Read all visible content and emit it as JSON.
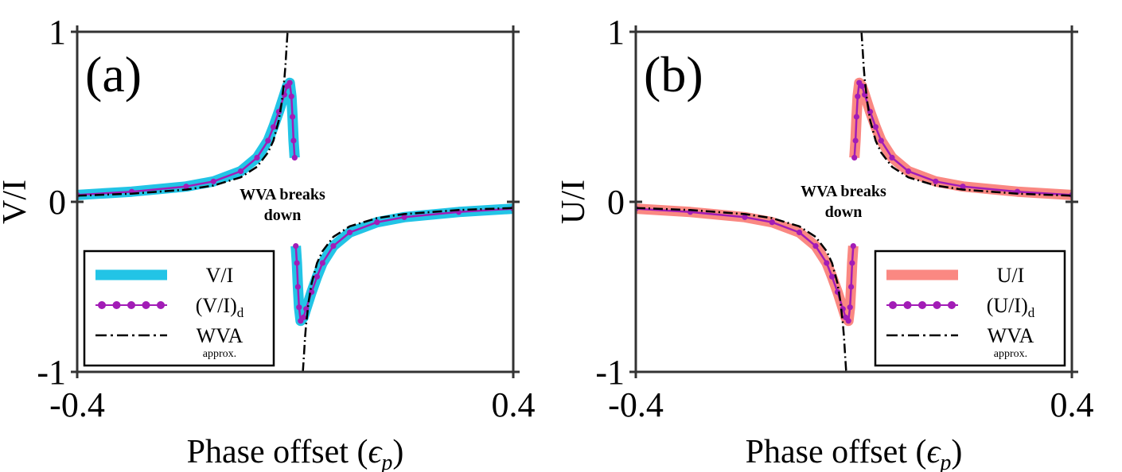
{
  "chart_data": [
    {
      "type": "line",
      "panel_label": "(a)",
      "xlabel": "Phase offset (",
      "xlabel_symbol": "ϵ",
      "xlabel_sub": "p",
      "xlabel_close": ")",
      "ylabel": "V/I",
      "xlim": [
        -0.4,
        0.4
      ],
      "ylim": [
        -1,
        1
      ],
      "xticks": [
        -0.4,
        0.4
      ],
      "xtick_labels": [
        "-0.4",
        "0.4"
      ],
      "yticks": [
        -1,
        0,
        1
      ],
      "ytick_labels": [
        "-1",
        "0",
        "1"
      ],
      "annotation": [
        "WVA breaks",
        "down"
      ],
      "legend_position": "bottom-left",
      "colors": {
        "exact": "#22c4e6",
        "dotted": "#a21cb6",
        "wva": "#000000"
      },
      "series": [
        {
          "name": "V/I",
          "role": "exact",
          "x": [
            -0.4,
            -0.3,
            -0.2,
            -0.15,
            -0.1,
            -0.07,
            -0.05,
            -0.04,
            -0.03,
            -0.02,
            -0.015,
            -0.01,
            -0.007,
            -0.005,
            -0.003,
            -0.001
          ],
          "y": [
            0.04,
            0.06,
            0.09,
            0.12,
            0.18,
            0.26,
            0.36,
            0.44,
            0.53,
            0.63,
            0.68,
            0.7,
            0.62,
            0.5,
            0.36,
            0.26
          ]
        },
        {
          "name": "V/I",
          "role": "exact",
          "x": [
            0.001,
            0.003,
            0.005,
            0.007,
            0.01,
            0.015,
            0.02,
            0.03,
            0.04,
            0.05,
            0.07,
            0.1,
            0.15,
            0.2,
            0.3,
            0.4
          ],
          "y": [
            -0.26,
            -0.36,
            -0.5,
            -0.62,
            -0.7,
            -0.68,
            -0.63,
            -0.53,
            -0.44,
            -0.36,
            -0.26,
            -0.18,
            -0.12,
            -0.09,
            -0.06,
            -0.04
          ]
        },
        {
          "name": "(V/I)",
          "name_sub": "d",
          "role": "dotted",
          "x": [
            -0.4,
            -0.3,
            -0.2,
            -0.15,
            -0.1,
            -0.07,
            -0.05,
            -0.04,
            -0.03,
            -0.02,
            -0.015,
            -0.01,
            -0.007,
            -0.005,
            -0.003,
            -0.001
          ],
          "y": [
            0.04,
            0.06,
            0.09,
            0.12,
            0.18,
            0.26,
            0.36,
            0.44,
            0.53,
            0.63,
            0.68,
            0.7,
            0.62,
            0.5,
            0.36,
            0.26
          ]
        },
        {
          "name": "(V/I)",
          "name_sub": "d",
          "role": "dotted",
          "x": [
            0.001,
            0.003,
            0.005,
            0.007,
            0.01,
            0.015,
            0.02,
            0.03,
            0.04,
            0.05,
            0.07,
            0.1,
            0.15,
            0.2,
            0.3,
            0.4
          ],
          "y": [
            -0.26,
            -0.36,
            -0.5,
            -0.62,
            -0.7,
            -0.68,
            -0.63,
            -0.53,
            -0.44,
            -0.36,
            -0.26,
            -0.18,
            -0.12,
            -0.09,
            -0.06,
            -0.04
          ]
        },
        {
          "name": "WVA",
          "name_note": "approx.",
          "role": "wva",
          "x": [
            -0.4,
            -0.3,
            -0.2,
            -0.15,
            -0.1,
            -0.07,
            -0.05,
            -0.04,
            -0.03,
            -0.025,
            -0.02,
            -0.018,
            -0.016,
            -0.014
          ],
          "y": [
            0.036,
            0.048,
            0.072,
            0.096,
            0.144,
            0.206,
            0.29,
            0.36,
            0.48,
            0.58,
            0.72,
            0.8,
            0.9,
            1.0
          ]
        },
        {
          "name": "WVA",
          "name_note": "approx.",
          "role": "wva",
          "x": [
            0.014,
            0.016,
            0.018,
            0.02,
            0.025,
            0.03,
            0.04,
            0.05,
            0.07,
            0.1,
            0.15,
            0.2,
            0.3,
            0.4
          ],
          "y": [
            -1.0,
            -0.9,
            -0.8,
            -0.72,
            -0.58,
            -0.48,
            -0.36,
            -0.29,
            -0.206,
            -0.144,
            -0.096,
            -0.072,
            -0.048,
            -0.036
          ]
        }
      ]
    },
    {
      "type": "line",
      "panel_label": "(b)",
      "xlabel": "Phase offset (",
      "xlabel_symbol": "ϵ",
      "xlabel_sub": "p",
      "xlabel_close": ")",
      "ylabel": "U/I",
      "xlim": [
        -0.4,
        0.4
      ],
      "ylim": [
        -1,
        1
      ],
      "xticks": [
        -0.4,
        0.4
      ],
      "xtick_labels": [
        "-0.4",
        "0.4"
      ],
      "yticks": [
        -1,
        0,
        1
      ],
      "ytick_labels": [
        "-1",
        "0",
        "1"
      ],
      "annotation": [
        "WVA breaks",
        "down"
      ],
      "legend_position": "bottom-right",
      "colors": {
        "exact": "#fa8882",
        "dotted": "#a21cb6",
        "wva": "#000000"
      },
      "series": [
        {
          "name": "U/I",
          "role": "exact",
          "x": [
            -0.4,
            -0.3,
            -0.2,
            -0.15,
            -0.1,
            -0.07,
            -0.05,
            -0.04,
            -0.03,
            -0.02,
            -0.015,
            -0.01,
            -0.007,
            -0.005,
            -0.003,
            -0.001
          ],
          "y": [
            -0.04,
            -0.06,
            -0.09,
            -0.12,
            -0.18,
            -0.26,
            -0.36,
            -0.44,
            -0.53,
            -0.63,
            -0.68,
            -0.7,
            -0.62,
            -0.5,
            -0.36,
            -0.26
          ]
        },
        {
          "name": "U/I",
          "role": "exact",
          "x": [
            0.001,
            0.003,
            0.005,
            0.007,
            0.01,
            0.015,
            0.02,
            0.03,
            0.04,
            0.05,
            0.07,
            0.1,
            0.15,
            0.2,
            0.3,
            0.4
          ],
          "y": [
            0.26,
            0.36,
            0.5,
            0.62,
            0.7,
            0.68,
            0.63,
            0.53,
            0.44,
            0.36,
            0.26,
            0.18,
            0.12,
            0.09,
            0.06,
            0.04
          ]
        },
        {
          "name": "(U/I)",
          "name_sub": "d",
          "role": "dotted",
          "x": [
            -0.4,
            -0.3,
            -0.2,
            -0.15,
            -0.1,
            -0.07,
            -0.05,
            -0.04,
            -0.03,
            -0.02,
            -0.015,
            -0.01,
            -0.007,
            -0.005,
            -0.003,
            -0.001
          ],
          "y": [
            -0.04,
            -0.06,
            -0.09,
            -0.12,
            -0.18,
            -0.26,
            -0.36,
            -0.44,
            -0.53,
            -0.63,
            -0.68,
            -0.7,
            -0.62,
            -0.5,
            -0.36,
            -0.26
          ]
        },
        {
          "name": "(U/I)",
          "name_sub": "d",
          "role": "dotted",
          "x": [
            0.001,
            0.003,
            0.005,
            0.007,
            0.01,
            0.015,
            0.02,
            0.03,
            0.04,
            0.05,
            0.07,
            0.1,
            0.15,
            0.2,
            0.3,
            0.4
          ],
          "y": [
            0.26,
            0.36,
            0.5,
            0.62,
            0.7,
            0.68,
            0.63,
            0.53,
            0.44,
            0.36,
            0.26,
            0.18,
            0.12,
            0.09,
            0.06,
            0.04
          ]
        },
        {
          "name": "WVA",
          "name_note": "approx.",
          "role": "wva",
          "x": [
            -0.4,
            -0.3,
            -0.2,
            -0.15,
            -0.1,
            -0.07,
            -0.05,
            -0.04,
            -0.03,
            -0.025,
            -0.02,
            -0.018,
            -0.016,
            -0.014
          ],
          "y": [
            -0.036,
            -0.048,
            -0.072,
            -0.096,
            -0.144,
            -0.206,
            -0.29,
            -0.36,
            -0.48,
            -0.58,
            -0.72,
            -0.8,
            -0.9,
            -1.0
          ]
        },
        {
          "name": "WVA",
          "name_note": "approx.",
          "role": "wva",
          "x": [
            0.014,
            0.016,
            0.018,
            0.02,
            0.025,
            0.03,
            0.04,
            0.05,
            0.07,
            0.1,
            0.15,
            0.2,
            0.3,
            0.4
          ],
          "y": [
            1.0,
            0.9,
            0.8,
            0.72,
            0.58,
            0.48,
            0.36,
            0.29,
            0.206,
            0.144,
            0.096,
            0.072,
            0.048,
            0.036
          ]
        }
      ]
    }
  ]
}
